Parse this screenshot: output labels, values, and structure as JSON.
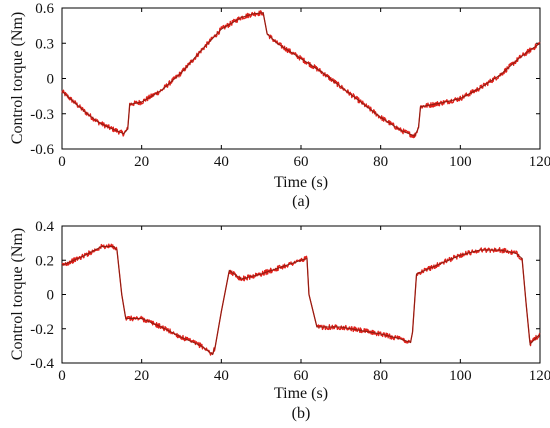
{
  "chart_data": [
    {
      "type": "line",
      "panel": "(a)",
      "xlabel": "Time (s)",
      "ylabel": "Control torque (Nm)",
      "xlim": [
        0,
        120
      ],
      "ylim": [
        -0.6,
        0.6
      ],
      "xticks": [
        0,
        20,
        40,
        60,
        80,
        100,
        120
      ],
      "yticks": [
        0.6,
        0.3,
        0,
        -0.3,
        -0.6
      ],
      "ytick_labels": [
        "0.6",
        "0.3",
        "0",
        "-0.3",
        "-0.6"
      ],
      "color": "#e0201a",
      "series": [
        {
          "x": [
            0,
            3,
            6,
            9,
            12,
            15.5,
            16.5,
            17,
            20,
            25,
            30,
            35,
            40,
            45,
            48,
            50.5,
            51.5,
            54,
            60,
            65,
            70,
            75,
            80,
            85,
            88.5,
            89.5,
            90,
            95,
            100,
            105,
            110,
            115,
            120
          ],
          "y": [
            -0.11,
            -0.2,
            -0.29,
            -0.37,
            -0.42,
            -0.47,
            -0.43,
            -0.22,
            -0.2,
            -0.1,
            0.05,
            0.24,
            0.42,
            0.52,
            0.55,
            0.56,
            0.38,
            0.3,
            0.17,
            0.06,
            -0.07,
            -0.2,
            -0.33,
            -0.44,
            -0.49,
            -0.42,
            -0.24,
            -0.21,
            -0.17,
            -0.08,
            0.03,
            0.18,
            0.3
          ]
        }
      ]
    },
    {
      "type": "line",
      "panel": "(b)",
      "xlabel": "Time (s)",
      "ylabel": "Control torque (Nm)",
      "xlim": [
        0,
        120
      ],
      "ylim": [
        -0.4,
        0.4
      ],
      "xticks": [
        0,
        20,
        40,
        60,
        80,
        100,
        120
      ],
      "yticks": [
        0.4,
        0.2,
        0,
        -0.2,
        -0.4
      ],
      "ytick_labels": [
        "0.4",
        "0.2",
        "0",
        "-0.2",
        "-0.4"
      ],
      "color": "#e0201a",
      "series": [
        {
          "x": [
            0,
            5,
            10,
            13,
            13.8,
            15,
            16,
            20,
            25,
            30,
            35,
            37.8,
            38.5,
            40,
            42,
            45,
            50,
            55,
            60,
            61.5,
            62,
            64,
            70,
            75,
            80,
            85,
            87.5,
            88,
            89,
            92,
            95,
            100,
            105,
            110,
            114,
            115.5,
            116.5,
            117.5,
            120
          ],
          "y": [
            0.17,
            0.22,
            0.28,
            0.28,
            0.26,
            0.0,
            -0.14,
            -0.14,
            -0.19,
            -0.25,
            -0.3,
            -0.35,
            -0.3,
            -0.1,
            0.14,
            0.09,
            0.12,
            0.16,
            0.2,
            0.21,
            0.0,
            -0.19,
            -0.19,
            -0.21,
            -0.23,
            -0.26,
            -0.28,
            -0.22,
            0.12,
            0.15,
            0.18,
            0.23,
            0.26,
            0.26,
            0.24,
            0.21,
            -0.05,
            -0.29,
            -0.23
          ]
        }
      ]
    }
  ],
  "captions": [
    "(a)",
    "(b)"
  ]
}
